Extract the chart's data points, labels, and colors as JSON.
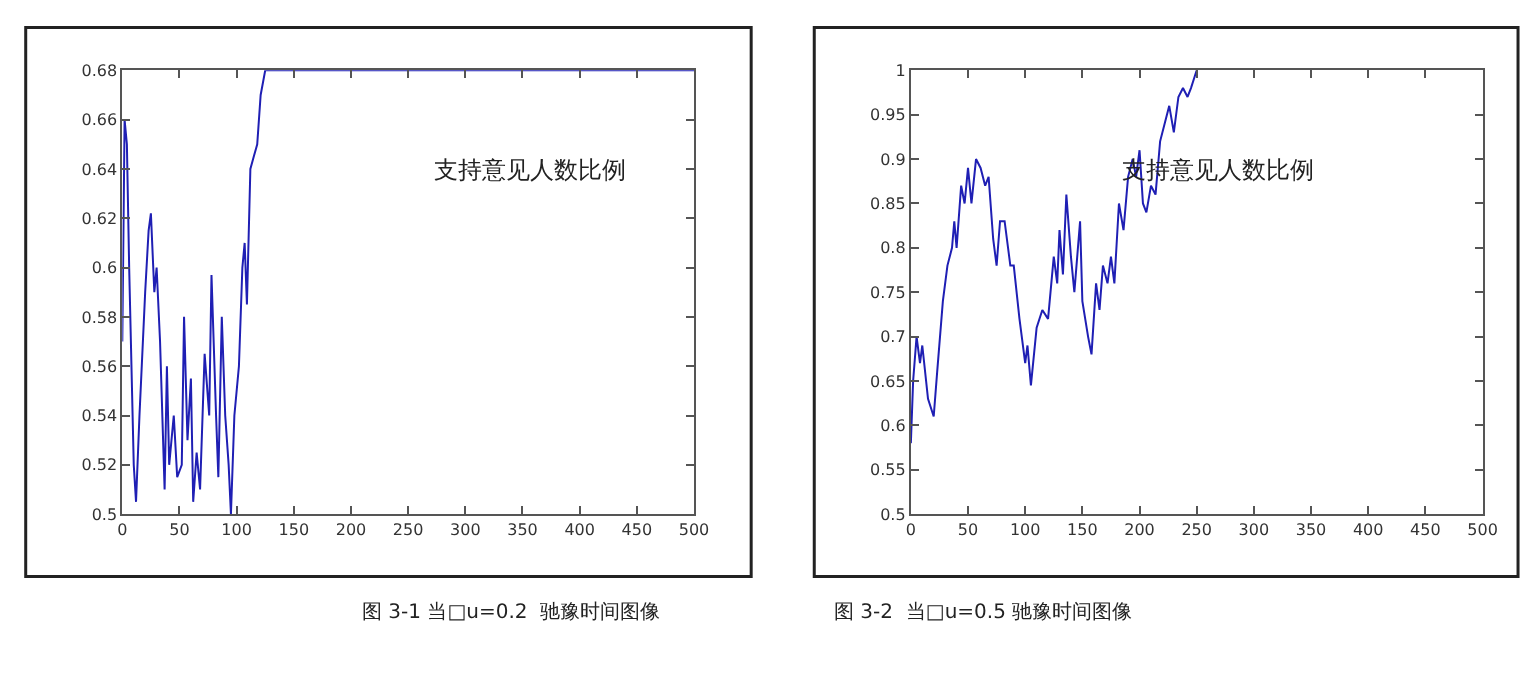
{
  "chart_data": [
    {
      "type": "line",
      "series": [
        {
          "color": "#1f1fb4",
          "x": [
            0,
            2,
            4,
            6,
            10,
            12,
            15,
            20,
            23,
            25,
            28,
            30,
            33,
            37,
            39,
            41,
            45,
            48,
            52,
            54,
            57,
            60,
            62,
            65,
            68,
            72,
            76,
            78,
            82,
            84,
            87,
            90,
            93,
            95,
            98,
            102,
            105,
            107,
            109,
            112,
            115,
            118,
            121,
            125,
            500
          ],
          "values": [
            0.57,
            0.66,
            0.65,
            0.6,
            0.52,
            0.505,
            0.54,
            0.59,
            0.615,
            0.622,
            0.59,
            0.6,
            0.57,
            0.51,
            0.56,
            0.52,
            0.54,
            0.515,
            0.52,
            0.58,
            0.53,
            0.555,
            0.505,
            0.525,
            0.51,
            0.565,
            0.54,
            0.597,
            0.54,
            0.515,
            0.58,
            0.54,
            0.52,
            0.5,
            0.54,
            0.56,
            0.6,
            0.61,
            0.585,
            0.64,
            0.645,
            0.65,
            0.67,
            0.68,
            0.68
          ]
        }
      ],
      "xlim": [
        0,
        500
      ],
      "xticks": [
        0,
        50,
        100,
        150,
        200,
        250,
        300,
        350,
        400,
        450,
        500
      ],
      "ylim": [
        0.5,
        0.68
      ],
      "yticks": [
        0.5,
        0.52,
        0.54,
        0.56,
        0.58,
        0.6,
        0.62,
        0.64,
        0.66,
        0.68
      ],
      "annotations": [
        "支持意见人数比例",
        "图 3-1 当□u=0.2  驰豫时间图像"
      ]
    },
    {
      "type": "line",
      "series": [
        {
          "color": "#1f1fb4",
          "x": [
            0,
            2,
            5,
            8,
            10,
            15,
            20,
            23,
            28,
            32,
            36,
            38,
            40,
            44,
            47,
            50,
            53,
            57,
            61,
            65,
            68,
            72,
            75,
            78,
            82,
            87,
            90,
            95,
            100,
            102,
            105,
            110,
            115,
            120,
            125,
            128,
            130,
            133,
            136,
            140,
            143,
            148,
            150,
            155,
            158,
            162,
            165,
            168,
            172,
            175,
            178,
            182,
            186,
            190,
            194,
            197,
            200,
            203,
            206,
            210,
            214,
            218,
            222,
            226,
            230,
            234,
            238,
            242,
            245,
            250
          ],
          "values": [
            0.58,
            0.65,
            0.7,
            0.67,
            0.69,
            0.63,
            0.61,
            0.66,
            0.74,
            0.78,
            0.8,
            0.83,
            0.8,
            0.87,
            0.85,
            0.89,
            0.85,
            0.9,
            0.89,
            0.87,
            0.88,
            0.81,
            0.78,
            0.83,
            0.83,
            0.78,
            0.78,
            0.72,
            0.67,
            0.69,
            0.645,
            0.71,
            0.73,
            0.72,
            0.79,
            0.76,
            0.82,
            0.77,
            0.86,
            0.79,
            0.75,
            0.83,
            0.74,
            0.7,
            0.68,
            0.76,
            0.73,
            0.78,
            0.76,
            0.79,
            0.76,
            0.85,
            0.82,
            0.88,
            0.9,
            0.88,
            0.91,
            0.85,
            0.84,
            0.87,
            0.86,
            0.92,
            0.94,
            0.96,
            0.93,
            0.97,
            0.98,
            0.97,
            0.98,
            1.0
          ]
        }
      ],
      "xlim": [
        0,
        500
      ],
      "xticks": [
        0,
        50,
        100,
        150,
        200,
        250,
        300,
        350,
        400,
        450,
        500
      ],
      "ylim": [
        0.5,
        1
      ],
      "yticks": [
        0.5,
        0.55,
        0.6,
        0.65,
        0.7,
        0.75,
        0.8,
        0.85,
        0.9,
        0.95,
        1
      ],
      "annotations": [
        "支持意见人数比例",
        "图 3-2  当□u=0.5 驰豫时间图像"
      ]
    }
  ]
}
